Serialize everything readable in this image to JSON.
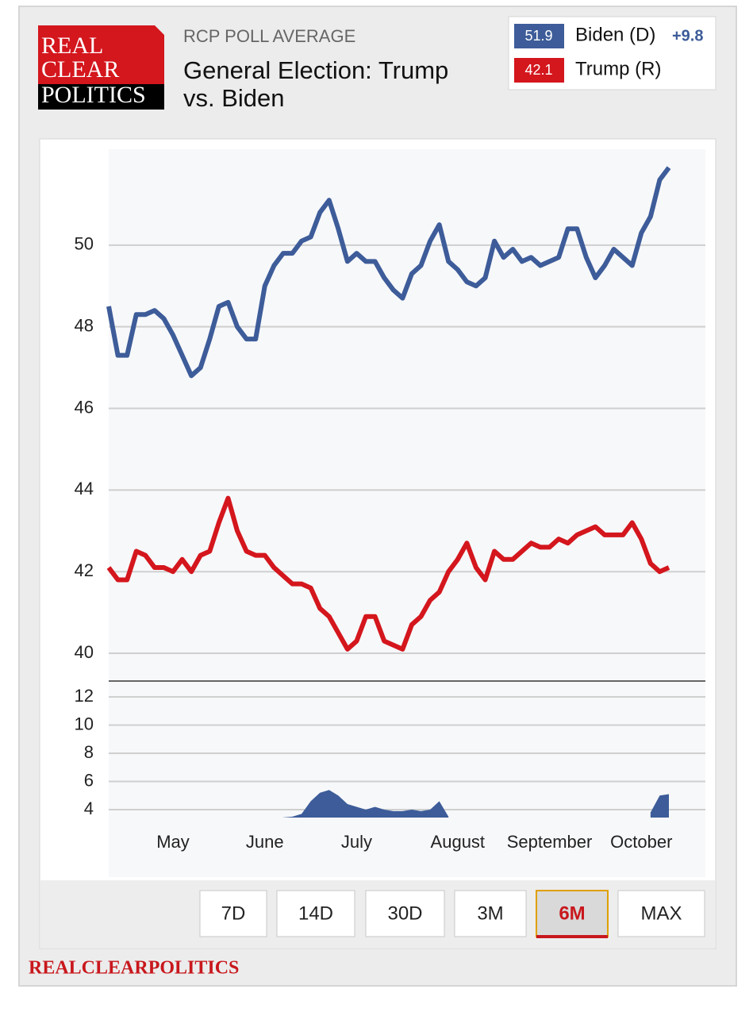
{
  "header": {
    "logo": [
      "REAL",
      "CLEAR",
      "POLITICS"
    ],
    "kicker": "RCP POLL AVERAGE",
    "title": [
      "General Election: Trump",
      "vs. Biden"
    ]
  },
  "chart_data": [
    {
      "type": "line",
      "legend_note": "+9.8",
      "categories": [
        null,
        null,
        null,
        null,
        null,
        null,
        null,
        "May",
        null,
        null,
        null,
        null,
        null,
        null,
        null,
        null,
        null,
        "June",
        null,
        null,
        null,
        null,
        null,
        null,
        null,
        null,
        null,
        "July",
        null,
        null,
        null,
        null,
        null,
        null,
        null,
        null,
        null,
        null,
        "August",
        null,
        null,
        null,
        null,
        null,
        null,
        null,
        null,
        null,
        "September",
        null,
        null,
        null,
        null,
        null,
        null,
        null,
        null,
        null,
        "October",
        null,
        null,
        null
      ],
      "series": [
        {
          "name": "Biden (D)",
          "color": "#3d5c99",
          "values": [
            48.5,
            47.3,
            47.3,
            48.3,
            48.3,
            48.4,
            48.2,
            47.8,
            47.3,
            46.8,
            47.0,
            47.7,
            48.5,
            48.6,
            48.0,
            47.7,
            47.7,
            49.0,
            49.5,
            49.8,
            49.8,
            50.1,
            50.2,
            50.8,
            51.1,
            50.4,
            49.6,
            49.8,
            49.6,
            49.6,
            49.2,
            48.9,
            48.7,
            49.3,
            49.5,
            50.1,
            50.5,
            49.6,
            49.4,
            49.1,
            49.0,
            49.2,
            50.1,
            49.7,
            49.9,
            49.6,
            49.7,
            49.5,
            49.6,
            49.7,
            50.4,
            50.4,
            49.7,
            49.2,
            49.5,
            49.9,
            49.7,
            49.5,
            50.3,
            50.7,
            51.6,
            51.9
          ]
        },
        {
          "name": "Trump (R)",
          "color": "#d4161d",
          "values": [
            42.1,
            41.8,
            41.8,
            42.5,
            42.4,
            42.1,
            42.1,
            42.0,
            42.3,
            42.0,
            42.4,
            42.5,
            43.2,
            43.8,
            43.0,
            42.5,
            42.4,
            42.4,
            42.1,
            41.9,
            41.7,
            41.7,
            41.6,
            41.1,
            40.9,
            40.5,
            40.1,
            40.3,
            40.9,
            40.9,
            40.3,
            40.2,
            40.1,
            40.7,
            40.9,
            41.3,
            41.5,
            42.0,
            42.3,
            42.7,
            42.1,
            41.8,
            42.5,
            42.3,
            42.3,
            42.5,
            42.7,
            42.6,
            42.6,
            42.8,
            42.7,
            42.9,
            43.0,
            43.1,
            42.9,
            42.9,
            42.9,
            43.2,
            42.8,
            42.2,
            42.0,
            42.1
          ]
        }
      ],
      "ylim": [
        39.32,
        52.35
      ],
      "yticks": [
        40,
        42,
        44,
        46,
        48,
        50
      ],
      "grid": true
    },
    {
      "type": "area",
      "color": "#3d5c99",
      "values": [
        null,
        null,
        null,
        null,
        null,
        null,
        null,
        null,
        null,
        null,
        null,
        null,
        null,
        null,
        null,
        null,
        null,
        null,
        null,
        3.45,
        3.5,
        3.7,
        4.6,
        5.2,
        5.4,
        5.0,
        4.4,
        4.2,
        4.0,
        4.2,
        4.0,
        3.9,
        3.9,
        4.0,
        3.9,
        4.0,
        4.6,
        3.5,
        null,
        null,
        null,
        null,
        null,
        null,
        null,
        null,
        null,
        null,
        null,
        null,
        null,
        null,
        null,
        null,
        null,
        null,
        null,
        null,
        null,
        3.8,
        5.0,
        5.1
      ],
      "ylim": [
        3.44,
        12.9
      ],
      "yticks": [
        4,
        6,
        8,
        10,
        12
      ],
      "grid": true
    }
  ],
  "buttons": {
    "labels": [
      "7D",
      "14D",
      "30D",
      "3M",
      "6M",
      "MAX"
    ],
    "selected": 4
  },
  "footer": "REALCLEARPOLITICS"
}
